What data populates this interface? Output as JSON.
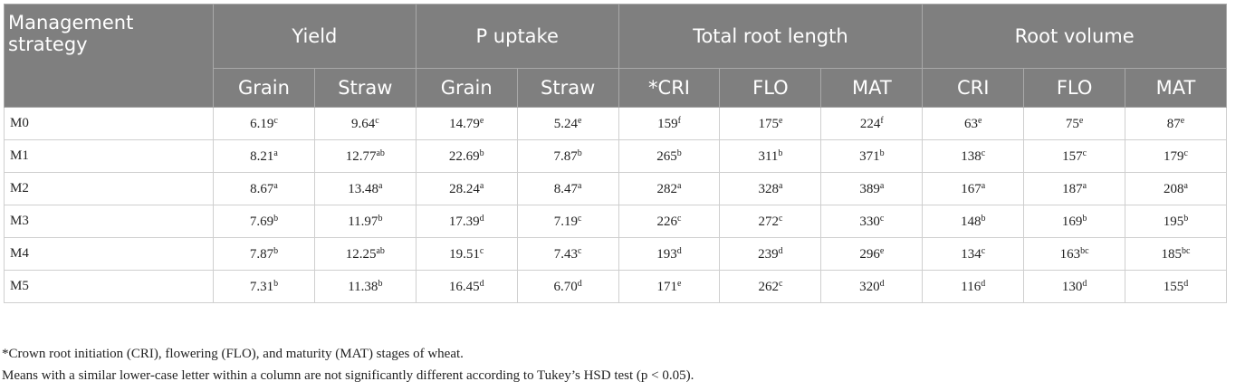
{
  "table": {
    "header": {
      "strategy": "Management strategy",
      "groups": [
        {
          "label": "Yield",
          "span": 2
        },
        {
          "label": "P uptake",
          "span": 2
        },
        {
          "label": "Total root length",
          "span": 3
        },
        {
          "label": "Root volume",
          "span": 3
        }
      ],
      "subheaders": [
        "Grain",
        "Straw",
        "Grain",
        "Straw",
        "*CRI",
        "FLO",
        "MAT",
        "CRI",
        "FLO",
        "MAT"
      ]
    },
    "rows": [
      {
        "label": "M0",
        "cells": [
          [
            "6.19",
            "c"
          ],
          [
            "9.64",
            "c"
          ],
          [
            "14.79",
            "e"
          ],
          [
            "5.24",
            "e"
          ],
          [
            "159",
            "f"
          ],
          [
            "175",
            "e"
          ],
          [
            "224",
            "f"
          ],
          [
            "63",
            "e"
          ],
          [
            "75",
            "e"
          ],
          [
            "87",
            "e"
          ]
        ]
      },
      {
        "label": "M1",
        "cells": [
          [
            "8.21",
            "a"
          ],
          [
            "12.77",
            "ab"
          ],
          [
            "22.69",
            "b"
          ],
          [
            "7.87",
            "b"
          ],
          [
            "265",
            "b"
          ],
          [
            "311",
            "b"
          ],
          [
            "371",
            "b"
          ],
          [
            "138",
            "c"
          ],
          [
            "157",
            "c"
          ],
          [
            "179",
            "c"
          ]
        ]
      },
      {
        "label": "M2",
        "cells": [
          [
            "8.67",
            "a"
          ],
          [
            "13.48",
            "a"
          ],
          [
            "28.24",
            "a"
          ],
          [
            "8.47",
            "a"
          ],
          [
            "282",
            "a"
          ],
          [
            "328",
            "a"
          ],
          [
            "389",
            "a"
          ],
          [
            "167",
            "a"
          ],
          [
            "187",
            "a"
          ],
          [
            "208",
            "a"
          ]
        ]
      },
      {
        "label": "M3",
        "cells": [
          [
            "7.69",
            "b"
          ],
          [
            "11.97",
            "b"
          ],
          [
            "17.39",
            "d"
          ],
          [
            "7.19",
            "c"
          ],
          [
            "226",
            "c"
          ],
          [
            "272",
            "c"
          ],
          [
            "330",
            "c"
          ],
          [
            "148",
            "b"
          ],
          [
            "169",
            "b"
          ],
          [
            "195",
            "b"
          ]
        ]
      },
      {
        "label": "M4",
        "cells": [
          [
            "7.87",
            "b"
          ],
          [
            "12.25",
            "ab"
          ],
          [
            "19.51",
            "c"
          ],
          [
            "7.43",
            "c"
          ],
          [
            "193",
            "d"
          ],
          [
            "239",
            "d"
          ],
          [
            "296",
            "e"
          ],
          [
            "134",
            "c"
          ],
          [
            "163",
            "bc"
          ],
          [
            "185",
            "bc"
          ]
        ]
      },
      {
        "label": "M5",
        "cells": [
          [
            "7.31",
            "b"
          ],
          [
            "11.38",
            "b"
          ],
          [
            "16.45",
            "d"
          ],
          [
            "6.70",
            "d"
          ],
          [
            "171",
            "e"
          ],
          [
            "262",
            "c"
          ],
          [
            "320",
            "d"
          ],
          [
            "116",
            "d"
          ],
          [
            "130",
            "d"
          ],
          [
            "155",
            "d"
          ]
        ]
      }
    ]
  },
  "notes": [
    "*Crown root initiation (CRI), flowering (FLO), and maturity (MAT) stages of wheat.",
    "Means with a similar lower-case letter within a column are not significantly different according to Tukey’s HSD test (p < 0.05)."
  ]
}
